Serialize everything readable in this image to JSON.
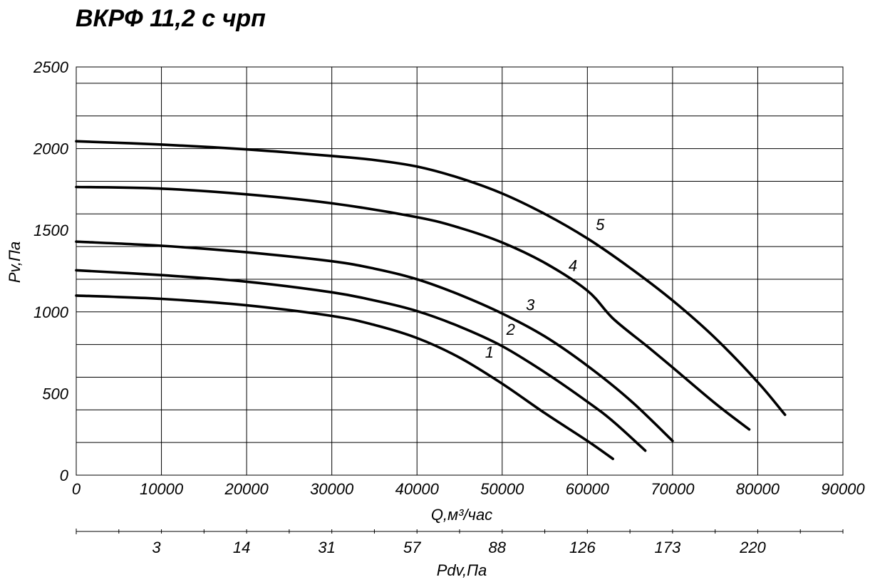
{
  "chart_data": {
    "type": "line",
    "title": "ВКРФ 11,2 с чрп",
    "xlabel": "Q,м³/час",
    "ylabel": "Pv,Па",
    "xlim": [
      0,
      90000
    ],
    "ylim": [
      0,
      2500
    ],
    "x_ticks": [
      "0",
      "10000",
      "20000",
      "30000",
      "40000",
      "50000",
      "60000",
      "70000",
      "80000",
      "90000"
    ],
    "y_ticks": [
      "0",
      "500",
      "1000",
      "1500",
      "2000",
      "2500"
    ],
    "grid": true,
    "secondary_axis": {
      "label": "Pdv,Па",
      "ticks": [
        {
          "q": 10000,
          "label": "3"
        },
        {
          "q": 20000,
          "label": "14"
        },
        {
          "q": 30000,
          "label": "31"
        },
        {
          "q": 40000,
          "label": "57"
        },
        {
          "q": 50000,
          "label": "88"
        },
        {
          "q": 60000,
          "label": "126"
        },
        {
          "q": 70000,
          "label": "173"
        },
        {
          "q": 80000,
          "label": "220"
        }
      ]
    },
    "series": [
      {
        "name": "1",
        "x": [
          0,
          10000,
          20000,
          30000,
          35000,
          40000,
          45000,
          50000,
          55000,
          60000,
          63000
        ],
        "y": [
          1100,
          1080,
          1040,
          975,
          920,
          840,
          720,
          560,
          380,
          210,
          100
        ]
      },
      {
        "name": "2",
        "x": [
          0,
          10000,
          20000,
          30000,
          35000,
          40000,
          45000,
          50000,
          55000,
          60000,
          63000,
          66800
        ],
        "y": [
          1255,
          1225,
          1185,
          1120,
          1070,
          1005,
          910,
          790,
          630,
          450,
          330,
          150
        ]
      },
      {
        "name": "3",
        "x": [
          0,
          10000,
          20000,
          30000,
          35000,
          40000,
          45000,
          50000,
          55000,
          60000,
          65000,
          70000
        ],
        "y": [
          1430,
          1405,
          1365,
          1310,
          1265,
          1200,
          1105,
          990,
          850,
          670,
          460,
          210
        ]
      },
      {
        "name": "4",
        "x": [
          0,
          10000,
          20000,
          30000,
          40000,
          45000,
          50000,
          55000,
          60000,
          63000,
          67000,
          70000,
          75000,
          79000
        ],
        "y": [
          1765,
          1755,
          1720,
          1665,
          1580,
          1515,
          1425,
          1300,
          1130,
          960,
          790,
          660,
          440,
          280
        ]
      },
      {
        "name": "5",
        "x": [
          0,
          10000,
          20000,
          30000,
          35000,
          40000,
          45000,
          50000,
          55000,
          60000,
          65000,
          70000,
          75000,
          80000,
          83200
        ],
        "y": [
          2045,
          2025,
          1995,
          1955,
          1930,
          1890,
          1820,
          1725,
          1600,
          1450,
          1270,
          1070,
          840,
          570,
          370
        ]
      }
    ],
    "curve_labels": [
      {
        "series": "1",
        "text": "1",
        "x": 48500,
        "y": 720
      },
      {
        "series": "2",
        "x": 51000,
        "y": 860,
        "text": "2"
      },
      {
        "series": "3",
        "x": 53300,
        "y": 1010,
        "text": "3"
      },
      {
        "series": "4",
        "x": 58300,
        "y": 1250,
        "text": "4"
      },
      {
        "series": "5",
        "x": 61500,
        "y": 1500,
        "text": "5"
      }
    ]
  }
}
